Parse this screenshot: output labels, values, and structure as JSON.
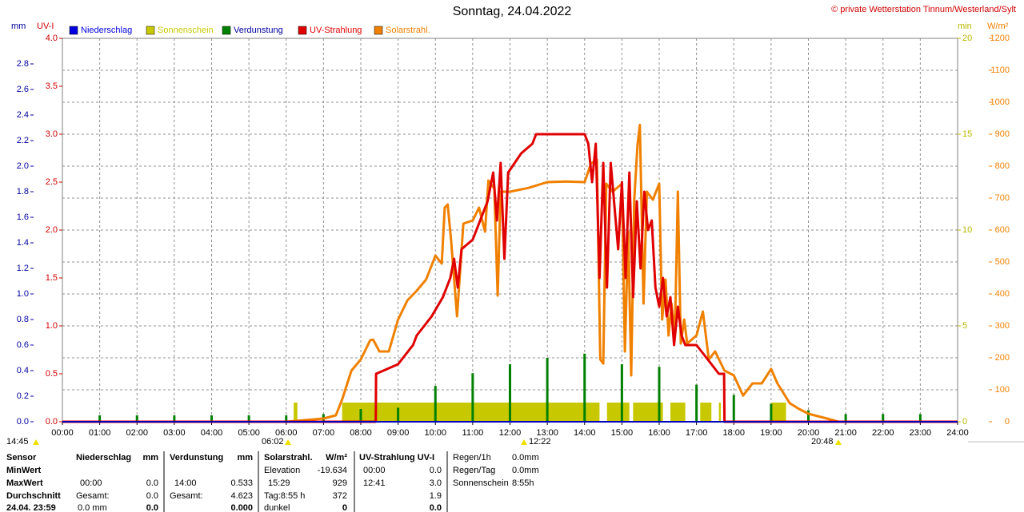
{
  "chart_data": {
    "type": "line",
    "title": "Sonntag, 24.04.2022",
    "subtitle": "© private Wetterstation Tinnum/Westerland/Sylt",
    "y_label": "mm",
    "y2_label": "UV-I",
    "y3_label": "min",
    "y4_label": "W/m²",
    "xlim": [
      0,
      24
    ],
    "xticks": [
      {
        "value": 0,
        "label": "00:00"
      },
      {
        "value": 1,
        "label": "01:00"
      },
      {
        "value": 2,
        "label": "02:00"
      },
      {
        "value": 3,
        "label": "03:00"
      },
      {
        "value": 4,
        "label": "04:00"
      },
      {
        "value": 5,
        "label": "05:00"
      },
      {
        "value": 6,
        "label": "06:00"
      },
      {
        "value": 7,
        "label": "07:00"
      },
      {
        "value": 8,
        "label": "08:00"
      },
      {
        "value": 9,
        "label": "09:00"
      },
      {
        "value": 10,
        "label": "10:00"
      },
      {
        "value": 11,
        "label": "11:00"
      },
      {
        "value": 12,
        "label": "12:00"
      },
      {
        "value": 13,
        "label": "13:00"
      },
      {
        "value": 14,
        "label": "14:00"
      },
      {
        "value": 15,
        "label": "15:00"
      },
      {
        "value": 16,
        "label": "16:00"
      },
      {
        "value": 17,
        "label": "17:00"
      },
      {
        "value": 18,
        "label": "18:00"
      },
      {
        "value": 19,
        "label": "19:00"
      },
      {
        "value": 20,
        "label": "20:00"
      },
      {
        "value": 21,
        "label": "21:00"
      },
      {
        "value": 22,
        "label": "22:00"
      },
      {
        "value": 23,
        "label": "23:00"
      },
      {
        "value": 24,
        "label": "24:00"
      }
    ],
    "ylim": [
      0,
      3.0
    ],
    "yticks": [
      {
        "value": 0,
        "label": "0.0"
      },
      {
        "value": 0.2,
        "label": "0.2"
      },
      {
        "value": 0.4,
        "label": "0.4"
      },
      {
        "value": 0.6,
        "label": "0.6"
      },
      {
        "value": 0.8,
        "label": "0.8"
      },
      {
        "value": 1.0,
        "label": "1.0"
      },
      {
        "value": 1.2,
        "label": "1.2"
      },
      {
        "value": 1.4,
        "label": "1.4"
      },
      {
        "value": 1.6,
        "label": "1.6"
      },
      {
        "value": 1.8,
        "label": "1.8"
      },
      {
        "value": 2.0,
        "label": "2.0"
      },
      {
        "value": 2.2,
        "label": "2.2"
      },
      {
        "value": 2.4,
        "label": "2.4"
      },
      {
        "value": 2.6,
        "label": "2.6"
      },
      {
        "value": 2.8,
        "label": "2.8"
      }
    ],
    "y2lim": [
      0,
      4.0
    ],
    "y2ticks": [
      {
        "value": 0,
        "label": "0.0"
      },
      {
        "value": 0.5,
        "label": "0.5"
      },
      {
        "value": 1.0,
        "label": "1.0"
      },
      {
        "value": 1.5,
        "label": "1.5"
      },
      {
        "value": 2.0,
        "label": "2.0"
      },
      {
        "value": 2.5,
        "label": "2.5"
      },
      {
        "value": 3.0,
        "label": "3.0"
      },
      {
        "value": 3.5,
        "label": "3.5"
      },
      {
        "value": 4.0,
        "label": "4.0"
      }
    ],
    "y3lim": [
      0,
      20
    ],
    "y3ticks": [
      0,
      5,
      10,
      15,
      20
    ],
    "y4lim": [
      0,
      1200
    ],
    "y4ticks": [
      0,
      100,
      200,
      300,
      400,
      500,
      600,
      700,
      800,
      900,
      1000,
      1100,
      1200
    ],
    "grid": true,
    "series": [
      {
        "name": "Niederschlag",
        "color": "#0000e0",
        "axis": "y",
        "kind": "spike",
        "x": [],
        "values": []
      },
      {
        "name": "Sonnenschein",
        "color": "#c8c800",
        "axis": "y3",
        "kind": "span",
        "x": [
          6.2,
          7.5,
          14.6,
          15.3,
          16.3,
          17.1,
          17.6,
          19.0
        ],
        "x_end": [
          6.3,
          14.4,
          15.2,
          16.1,
          16.7,
          17.4,
          17.65,
          19.4
        ],
        "values": [
          1,
          1,
          1,
          1,
          1,
          1,
          1,
          1
        ]
      },
      {
        "name": "Verdunstung",
        "color": "#008000",
        "axis": "y",
        "kind": "spike",
        "x": [
          1,
          2,
          3,
          4,
          5,
          6,
          7,
          8,
          9,
          10,
          11,
          12,
          13,
          14,
          15,
          16,
          17,
          18,
          19,
          20,
          21,
          22,
          23
        ],
        "values": [
          0.05,
          0.05,
          0.05,
          0.05,
          0.05,
          0.05,
          0.06,
          0.1,
          0.11,
          0.28,
          0.38,
          0.45,
          0.5,
          0.533,
          0.45,
          0.43,
          0.29,
          0.21,
          0.14,
          0.09,
          0.06,
          0.06,
          0.06
        ]
      },
      {
        "name": "UV-Strahlung",
        "color": "#e00000",
        "axis": "y2",
        "kind": "line",
        "x": [
          0,
          8.4,
          8.41,
          9.0,
          9.2,
          9.4,
          9.5,
          9.7,
          9.9,
          10.2,
          10.4,
          10.5,
          10.6,
          10.7,
          11.0,
          11.2,
          11.4,
          11.55,
          11.65,
          11.75,
          11.85,
          11.95,
          12.3,
          12.6,
          12.7,
          14.0,
          14.1,
          14.2,
          14.3,
          14.4,
          14.5,
          14.6,
          14.7,
          14.9,
          15.0,
          15.1,
          15.2,
          15.3,
          15.4,
          15.5,
          15.6,
          15.7,
          15.8,
          15.9,
          16.0,
          16.1,
          16.2,
          16.3,
          16.4,
          16.5,
          16.6,
          16.7,
          17.0,
          17.2,
          17.4,
          17.6,
          17.74,
          17.75,
          24
        ],
        "values": [
          0,
          0,
          0.5,
          0.6,
          0.7,
          0.8,
          0.9,
          1.0,
          1.1,
          1.3,
          1.5,
          1.7,
          1.4,
          1.8,
          1.9,
          2.1,
          2.3,
          2.6,
          2.1,
          2.7,
          1.7,
          2.6,
          2.8,
          2.9,
          3.0,
          3.0,
          2.9,
          2.5,
          2.9,
          1.5,
          2.7,
          1.4,
          2.7,
          1.8,
          2.5,
          1.5,
          2.6,
          1.3,
          2.3,
          1.6,
          2.4,
          2.0,
          2.1,
          1.4,
          1.2,
          1.5,
          1.1,
          1.3,
          0.8,
          1.2,
          0.9,
          0.8,
          0.8,
          0.7,
          0.6,
          0.5,
          0.5,
          0,
          0
        ]
      },
      {
        "name": "Solarstrahl.",
        "color": "#f08000",
        "axis": "y4",
        "kind": "line",
        "x": [
          0,
          6.0,
          6.5,
          7.0,
          7.33,
          7.5,
          7.75,
          8.0,
          8.25,
          8.33,
          8.5,
          8.75,
          9.0,
          9.25,
          9.5,
          9.75,
          10.0,
          10.17,
          10.25,
          10.33,
          10.42,
          10.58,
          10.75,
          11.0,
          11.17,
          11.33,
          11.42,
          11.58,
          11.67,
          11.75,
          12.0,
          12.5,
          13.0,
          13.5,
          14.0,
          14.17,
          14.33,
          14.42,
          14.5,
          14.58,
          14.75,
          15.0,
          15.08,
          15.17,
          15.25,
          15.33,
          15.42,
          15.48,
          15.58,
          15.67,
          15.83,
          16.0,
          16.08,
          16.17,
          16.25,
          16.33,
          16.42,
          16.5,
          16.58,
          16.67,
          16.75,
          17.0,
          17.17,
          17.25,
          17.33,
          17.5,
          17.75,
          18.0,
          18.25,
          18.5,
          18.75,
          19.0,
          19.17,
          19.5,
          19.75,
          20.0,
          20.5,
          20.8,
          24
        ],
        "values": [
          0,
          0,
          5,
          10,
          20,
          70,
          160,
          195,
          255,
          257,
          220,
          220,
          320,
          380,
          410,
          445,
          520,
          495,
          670,
          680,
          570,
          330,
          620,
          630,
          670,
          595,
          755,
          730,
          395,
          720,
          720,
          732,
          750,
          752,
          750,
          808,
          820,
          195,
          182,
          745,
          720,
          745,
          220,
          595,
          145,
          695,
          870,
          929,
          370,
          720,
          695,
          745,
          320,
          445,
          270,
          370,
          270,
          720,
          245,
          320,
          245,
          270,
          345,
          270,
          195,
          220,
          160,
          145,
          82,
          120,
          120,
          165,
          120,
          58,
          40,
          25,
          10,
          0,
          0
        ]
      }
    ],
    "annotations": [
      "14:45",
      "06:02",
      "12:22",
      "20:48"
    ]
  },
  "stats": {
    "labels": [
      "Sensor",
      "MinWert",
      "MaxWert",
      "Durchschnitt",
      "24.04. 23:59"
    ],
    "niederschlag": {
      "title": "Niederschlag",
      "unit": "mm",
      "max_time": "00:00",
      "max": "0.0",
      "total_label": "Gesamt:",
      "total": "0.0",
      "last_label": "0.0 mm",
      "last": "0.0"
    },
    "verdunstung": {
      "title": "Verdunstung",
      "unit": "mm",
      "max_time": "14:00",
      "max": "0.533",
      "total_label": "Gesamt:",
      "total": "4.623",
      "last": "0.000"
    },
    "solar": {
      "title": "Solarstrahl.",
      "unit": "W/m²",
      "min_label": "Elevation",
      "min": "-19.634",
      "max_time": "15:29",
      "max": "929",
      "avg_label": "Tag:8:55 h",
      "avg": "372",
      "last_label": "dunkel",
      "last": "0"
    },
    "uv": {
      "title": "UV-Strahlung UV-I",
      "min_time": "00:00",
      "min": "0.0",
      "max_time": "12:41",
      "max": "3.0",
      "avg": "1.9",
      "last": "0.0"
    },
    "rain": {
      "hour_label": "Regen/1h",
      "hour": "0.0mm",
      "day_label": "Regen/Tag",
      "day": "0.0mm",
      "sun_label": "Sonnenschein",
      "sun": "8:55h"
    }
  }
}
